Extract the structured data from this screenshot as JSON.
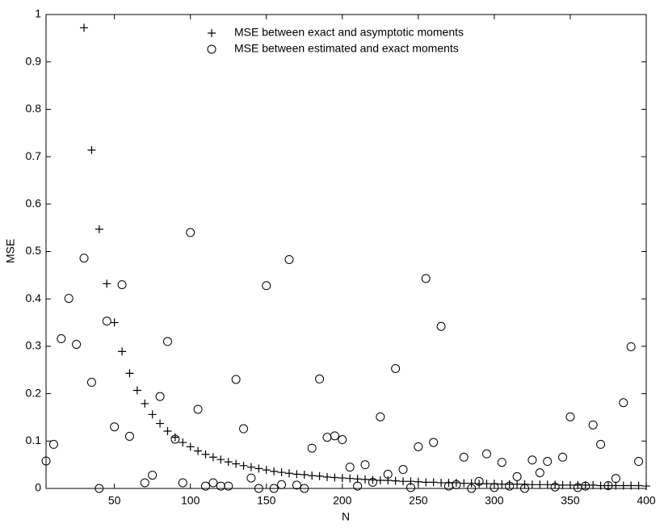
{
  "chart_data": {
    "type": "scatter",
    "x_label": "N",
    "y_label": "MSE",
    "xlim": [
      5,
      400
    ],
    "xticks": [
      50,
      100,
      150,
      200,
      250,
      300,
      350,
      400
    ],
    "ylim": [
      0,
      1
    ],
    "yticks": [
      0,
      0.1,
      0.2,
      0.3,
      0.4,
      0.5,
      0.6,
      0.7,
      0.8,
      0.9,
      1
    ],
    "legend": "upper center",
    "series": [
      {
        "name": "MSE between exact and asymptotic moments",
        "marker": "plus",
        "color": "#000000",
        "x": [
          30,
          35,
          40,
          45,
          50,
          55,
          60,
          65,
          70,
          75,
          80,
          85,
          90,
          95,
          100,
          105,
          110,
          115,
          120,
          125,
          130,
          135,
          140,
          145,
          150,
          155,
          160,
          165,
          170,
          175,
          180,
          185,
          190,
          195,
          200,
          205,
          210,
          215,
          220,
          225,
          230,
          235,
          240,
          245,
          250,
          255,
          260,
          265,
          270,
          275,
          280,
          285,
          290,
          295,
          300,
          305,
          310,
          315,
          320,
          325,
          330,
          335,
          340,
          345,
          350,
          355,
          360,
          365,
          370,
          375,
          380,
          385,
          390,
          395,
          400
        ],
        "values": [
          0.972,
          0.714,
          0.547,
          0.432,
          0.35,
          0.289,
          0.243,
          0.207,
          0.179,
          0.156,
          0.137,
          0.121,
          0.108,
          0.097,
          0.088,
          0.079,
          0.072,
          0.066,
          0.061,
          0.056,
          0.052,
          0.048,
          0.045,
          0.042,
          0.039,
          0.036,
          0.034,
          0.032,
          0.03,
          0.029,
          0.027,
          0.026,
          0.024,
          0.023,
          0.022,
          0.021,
          0.02,
          0.019,
          0.018,
          0.017,
          0.017,
          0.016,
          0.015,
          0.015,
          0.014,
          0.013,
          0.013,
          0.012,
          0.012,
          0.012,
          0.011,
          0.011,
          0.01,
          0.01,
          0.01,
          0.009,
          0.009,
          0.009,
          0.009,
          0.008,
          0.008,
          0.008,
          0.008,
          0.007,
          0.007,
          0.007,
          0.007,
          0.007,
          0.006,
          0.006,
          0.006,
          0.006,
          0.006,
          0.006,
          0.005
        ]
      },
      {
        "name": "MSE between estimated and exact moments",
        "marker": "circle",
        "color": "#000000",
        "x": [
          5,
          10,
          15,
          20,
          25,
          30,
          35,
          40,
          45,
          50,
          55,
          60,
          70,
          75,
          80,
          85,
          90,
          95,
          100,
          105,
          110,
          115,
          120,
          125,
          130,
          135,
          140,
          145,
          150,
          155,
          160,
          165,
          170,
          175,
          180,
          185,
          190,
          195,
          200,
          205,
          210,
          215,
          220,
          225,
          230,
          235,
          240,
          245,
          250,
          255,
          260,
          265,
          270,
          275,
          280,
          285,
          290,
          295,
          300,
          305,
          310,
          315,
          320,
          325,
          330,
          335,
          340,
          345,
          350,
          355,
          360,
          365,
          370,
          375,
          380,
          385,
          390,
          395
        ],
        "values": [
          0.058,
          0.093,
          0.316,
          0.401,
          0.304,
          0.486,
          0.224,
          0.0,
          0.353,
          0.13,
          0.43,
          0.11,
          0.012,
          0.028,
          0.194,
          0.31,
          0.104,
          0.012,
          0.54,
          0.167,
          0.005,
          0.012,
          0.005,
          0.005,
          0.23,
          0.126,
          0.022,
          0.0,
          0.428,
          0.0,
          0.008,
          0.483,
          0.007,
          0.0,
          0.085,
          0.231,
          0.108,
          0.111,
          0.103,
          0.045,
          0.005,
          0.05,
          0.013,
          0.151,
          0.03,
          0.253,
          0.04,
          0.002,
          0.088,
          0.443,
          0.097,
          0.342,
          0.005,
          0.008,
          0.066,
          0.0,
          0.015,
          0.073,
          0.002,
          0.055,
          0.005,
          0.025,
          0.0,
          0.06,
          0.033,
          0.057,
          0.003,
          0.066,
          0.151,
          0.002,
          0.005,
          0.134,
          0.093,
          0.006,
          0.021,
          0.181,
          0.299,
          0.057
        ]
      }
    ]
  }
}
